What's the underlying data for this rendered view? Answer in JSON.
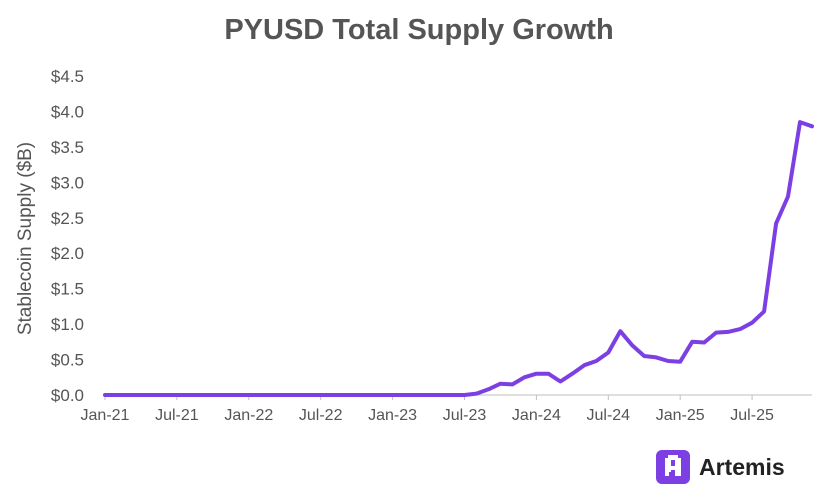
{
  "title": "PYUSD Total Supply Growth",
  "brand": {
    "name": "Artemis",
    "icon": "artemis-logo-icon"
  },
  "colors": {
    "line": "#7b3fe4",
    "axis": "#bfbfbf",
    "text": "#555555",
    "title": "#555555"
  },
  "chart_data": {
    "type": "line",
    "title": "PYUSD Total Supply Growth",
    "xlabel": "",
    "ylabel": "Stablecoin Supply ($B)",
    "ylim": [
      0,
      4.5
    ],
    "yticks": [
      "$0.0",
      "$0.5",
      "$1.0",
      "$1.5",
      "$2.0",
      "$2.5",
      "$3.0",
      "$3.5",
      "$4.0",
      "$4.5"
    ],
    "xticks": [
      "Jan-21",
      "Jul-21",
      "Jan-22",
      "Jul-22",
      "Jan-23",
      "Jul-23",
      "Jan-24",
      "Jul-24",
      "Jan-25",
      "Jul-25"
    ],
    "grid": false,
    "legend": "none",
    "series": [
      {
        "x": [
          "Jan-21",
          "Feb-21",
          "Mar-21",
          "Apr-21",
          "May-21",
          "Jun-21",
          "Jul-21",
          "Aug-21",
          "Sep-21",
          "Oct-21",
          "Nov-21",
          "Dec-21",
          "Jan-22",
          "Feb-22",
          "Mar-22",
          "Apr-22",
          "May-22",
          "Jun-22",
          "Jul-22",
          "Aug-22",
          "Sep-22",
          "Oct-22",
          "Nov-22",
          "Dec-22",
          "Jan-23",
          "Feb-23",
          "Mar-23",
          "Apr-23",
          "May-23",
          "Jun-23",
          "Jul-23",
          "Aug-23",
          "Sep-23",
          "Oct-23",
          "Nov-23",
          "Dec-23",
          "Jan-24",
          "Feb-24",
          "Mar-24",
          "Apr-24",
          "May-24",
          "Jun-24",
          "Jul-24",
          "Aug-24",
          "Sep-24",
          "Oct-24",
          "Nov-24",
          "Dec-24",
          "Jan-25",
          "Feb-25",
          "Mar-25",
          "Apr-25",
          "May-25",
          "Jun-25",
          "Jul-25",
          "Aug-25",
          "Sep-25",
          "Oct-25",
          "Nov-25",
          "Dec-25"
        ],
        "values": [
          0,
          0,
          0,
          0,
          0,
          0,
          0,
          0,
          0,
          0,
          0,
          0,
          0,
          0,
          0,
          0,
          0,
          0,
          0,
          0,
          0,
          0,
          0,
          0,
          0,
          0,
          0,
          0,
          0,
          0,
          0,
          0.02,
          0.08,
          0.16,
          0.15,
          0.25,
          0.3,
          0.3,
          0.19,
          0.3,
          0.42,
          0.48,
          0.6,
          0.9,
          0.7,
          0.55,
          0.53,
          0.48,
          0.47,
          0.75,
          0.74,
          0.88,
          0.89,
          0.93,
          1.02,
          1.18,
          2.42,
          2.8,
          3.85,
          3.79
        ]
      }
    ]
  }
}
